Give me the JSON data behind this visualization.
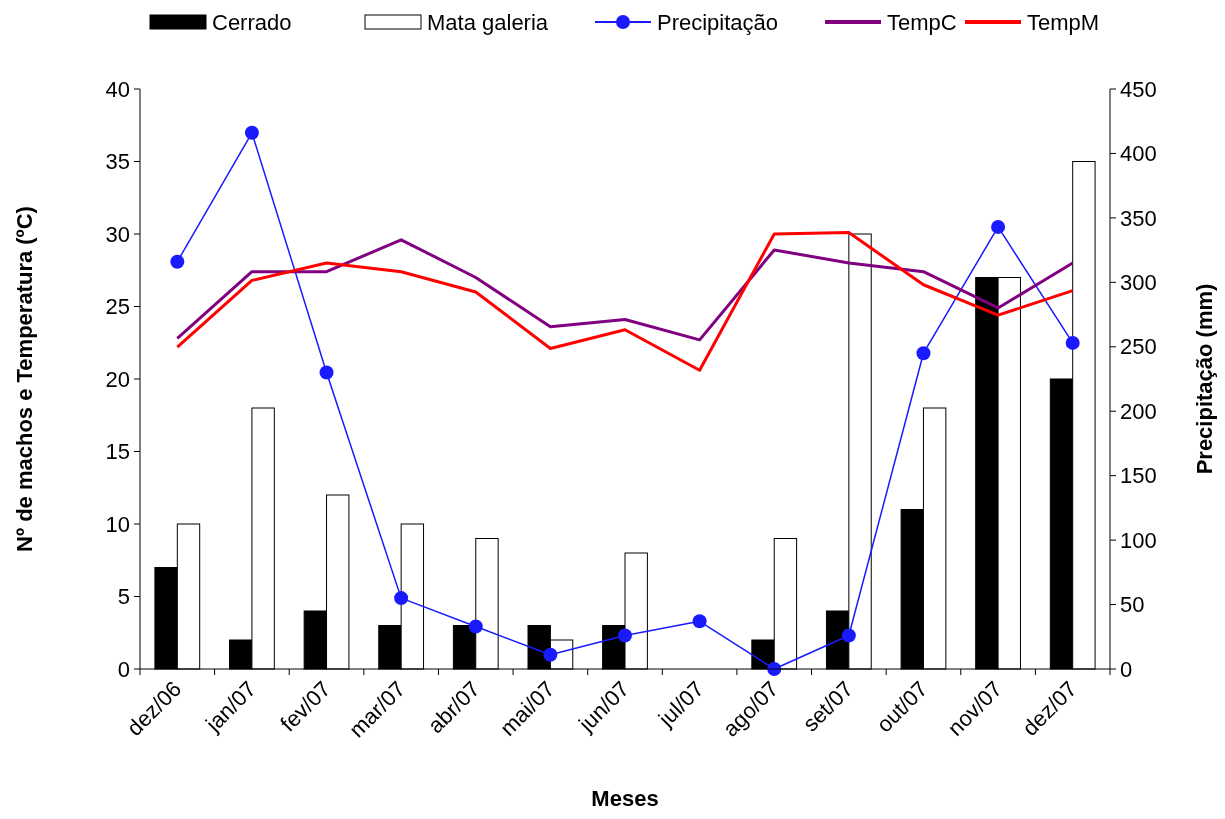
{
  "chart_data": {
    "type": "bar",
    "xlabel": "Meses",
    "ylabel": "Nº de machos e Temperatura (ºC)",
    "y2label": "Precipitação (mm)",
    "categories": [
      "dez/06",
      "jan/07",
      "fev/07",
      "mar/07",
      "abr/07",
      "mai/07",
      "jun/07",
      "jul/07",
      "ago/07",
      "set/07",
      "out/07",
      "nov/07",
      "dez/07"
    ],
    "series": [
      {
        "name": "Cerrado",
        "color": "#000000",
        "values": [
          7,
          2,
          4,
          3,
          3,
          3,
          3,
          0,
          2,
          4,
          11,
          27,
          20
        ]
      },
      {
        "name": "Mata galeria",
        "color": "#ffffff",
        "values": [
          10,
          18,
          12,
          10,
          9,
          2,
          8,
          0,
          9,
          30,
          18,
          27,
          35
        ]
      },
      {
        "name": "Precipitação",
        "type": "line",
        "axis": "y2",
        "marker": "circle",
        "color": "#1a1aff",
        "values": [
          316,
          416,
          230,
          55,
          33,
          11,
          26,
          37,
          0,
          26,
          245,
          343,
          253
        ]
      },
      {
        "name": "TempC",
        "type": "line",
        "marker": "none",
        "color": "#800080",
        "values": [
          22.8,
          27.4,
          27.4,
          29.6,
          27,
          23.6,
          24.1,
          22.7,
          28.9,
          28,
          27.4,
          24.9,
          28
        ]
      },
      {
        "name": "TempM",
        "type": "line",
        "marker": "none",
        "color": "#ff0000",
        "values": [
          22.2,
          26.8,
          28,
          27.4,
          26,
          22.1,
          23.4,
          20.6,
          30,
          30.1,
          26.5,
          24.4,
          26.1
        ]
      }
    ],
    "ylim": [
      0,
      40
    ],
    "yticks": [
      0,
      5,
      10,
      15,
      20,
      25,
      30,
      35,
      40
    ],
    "y2lim": [
      0,
      450
    ],
    "y2ticks": [
      0,
      50,
      100,
      150,
      200,
      250,
      300,
      350,
      400,
      450
    ],
    "legend": "top",
    "grid": false
  }
}
